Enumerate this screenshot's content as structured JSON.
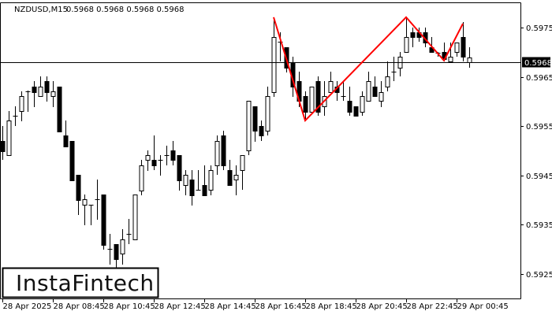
{
  "header": {
    "symbol": "NZDUSD,M15",
    "ohlc_text": "0.5968 0.5968 0.5968 0.5968"
  },
  "logo": {
    "text": "InstaFintech"
  },
  "colors": {
    "bull_fill": "#ffffff",
    "bear_fill": "#000000",
    "candle_stroke": "#000000",
    "pattern_line": "#ff0000",
    "price_tag_bg": "#000000",
    "price_tag_text": "#ffffff"
  },
  "chart_data": {
    "type": "candlestick",
    "title": "NZDUSD,M15",
    "timeframe_minutes": 15,
    "first_candle_time": "28 Apr 2025 06:45",
    "ylim": [
      0.592,
      0.598
    ],
    "grid": false,
    "y_ticks": [
      "0.5975",
      "0.5965",
      "0.5955",
      "0.5945",
      "0.5935",
      "0.5925"
    ],
    "x_ticks": [
      {
        "label": "28 Apr 2025",
        "candle": 0
      },
      {
        "label": "28 Apr 08:45",
        "candle": 8
      },
      {
        "label": "28 Apr 10:45",
        "candle": 16
      },
      {
        "label": "28 Apr 12:45",
        "candle": 24
      },
      {
        "label": "28 Apr 14:45",
        "candle": 32
      },
      {
        "label": "28 Apr 16:45",
        "candle": 40
      },
      {
        "label": "28 Apr 18:45",
        "candle": 48
      },
      {
        "label": "28 Apr 20:45",
        "candle": 56
      },
      {
        "label": "28 Apr 22:45",
        "candle": 64
      },
      {
        "label": "29 Apr 00:45",
        "candle": 72
      }
    ],
    "current_price": 0.5968,
    "current_price_label": "0.5968",
    "ohlc_fields": [
      "open",
      "high",
      "low",
      "close"
    ],
    "candles": [
      [
        0.5952,
        0.5955,
        0.59481,
        0.59499
      ],
      [
        0.59491,
        0.5958,
        0.59491,
        0.59561
      ],
      [
        0.59571,
        0.5959,
        0.5955,
        0.59571
      ],
      [
        0.5958,
        0.5962,
        0.5956,
        0.59611
      ],
      [
        0.5962,
        0.59622,
        0.59579,
        0.5962
      ],
      [
        0.5963,
        0.59641,
        0.59588,
        0.59619
      ],
      [
        0.59611,
        0.59651,
        0.59611,
        0.5963
      ],
      [
        0.59641,
        0.59651,
        0.596,
        0.59619
      ],
      [
        0.59611,
        0.59641,
        0.59588,
        0.5962
      ],
      [
        0.5963,
        0.5963,
        0.59539,
        0.59539
      ],
      [
        0.59531,
        0.59561,
        0.59508,
        0.59508
      ],
      [
        0.5952,
        0.5952,
        0.5944,
        0.5944
      ],
      [
        0.59451,
        0.59451,
        0.59369,
        0.594
      ],
      [
        0.5939,
        0.59411,
        0.59348,
        0.59401
      ],
      [
        0.5939,
        0.5939,
        0.59348,
        0.5939
      ],
      [
        0.59401,
        0.59441,
        0.5936,
        0.59401
      ],
      [
        0.59411,
        0.59411,
        0.59299,
        0.59308
      ],
      [
        0.593,
        0.59331,
        0.59268,
        0.593
      ],
      [
        0.5931,
        0.5931,
        0.59262,
        0.5928
      ],
      [
        0.59291,
        0.5934,
        0.59268,
        0.5932
      ],
      [
        0.59331,
        0.59361,
        0.5931,
        0.59331
      ],
      [
        0.5932,
        0.59411,
        0.5932,
        0.59411
      ],
      [
        0.59419,
        0.59481,
        0.59409,
        0.5947
      ],
      [
        0.59481,
        0.595,
        0.59459,
        0.59491
      ],
      [
        0.59481,
        0.59531,
        0.5946,
        0.5947
      ],
      [
        0.59481,
        0.59491,
        0.59449,
        0.59481
      ],
      [
        0.59491,
        0.5951,
        0.5947,
        0.59491
      ],
      [
        0.595,
        0.5952,
        0.5947,
        0.59481
      ],
      [
        0.59491,
        0.59491,
        0.59419,
        0.5944
      ],
      [
        0.5943,
        0.5946,
        0.59409,
        0.59451
      ],
      [
        0.59441,
        0.5946,
        0.59388,
        0.59409
      ],
      [
        0.5942,
        0.5946,
        0.5942,
        0.5942
      ],
      [
        0.5943,
        0.5947,
        0.59409,
        0.59409
      ],
      [
        0.5942,
        0.5947,
        0.59409,
        0.5946
      ],
      [
        0.5947,
        0.59531,
        0.59451,
        0.5952
      ],
      [
        0.59531,
        0.5954,
        0.5946,
        0.5947
      ],
      [
        0.5946,
        0.59481,
        0.5943,
        0.5943
      ],
      [
        0.59441,
        0.5947,
        0.59409,
        0.59451
      ],
      [
        0.5946,
        0.59491,
        0.5942,
        0.59491
      ],
      [
        0.595,
        0.59601,
        0.59491,
        0.59601
      ],
      [
        0.5959,
        0.5959,
        0.59518,
        0.5954
      ],
      [
        0.5955,
        0.59561,
        0.5952,
        0.59531
      ],
      [
        0.5954,
        0.5963,
        0.59531,
        0.59611
      ],
      [
        0.59619,
        0.59771,
        0.59609,
        0.59731
      ],
      [
        0.59721,
        0.5974,
        0.59681,
        0.59721
      ],
      [
        0.5971,
        0.5971,
        0.59659,
        0.59668
      ],
      [
        0.5968,
        0.59691,
        0.59609,
        0.5963
      ],
      [
        0.59641,
        0.5966,
        0.59588,
        0.59601
      ],
      [
        0.59611,
        0.5962,
        0.59561,
        0.59579
      ],
      [
        0.59579,
        0.5963,
        0.59579,
        0.5963
      ],
      [
        0.59641,
        0.59651,
        0.59571,
        0.59579
      ],
      [
        0.5959,
        0.59641,
        0.59571,
        0.59611
      ],
      [
        0.59619,
        0.5966,
        0.59619,
        0.59641
      ],
      [
        0.5963,
        0.59641,
        0.59601,
        0.59619
      ],
      [
        0.59611,
        0.59641,
        0.59601,
        0.59611
      ],
      [
        0.59601,
        0.5963,
        0.59571,
        0.59579
      ],
      [
        0.5959,
        0.5959,
        0.59571,
        0.59571
      ],
      [
        0.59579,
        0.5962,
        0.59571,
        0.59611
      ],
      [
        0.59601,
        0.5966,
        0.59601,
        0.59641
      ],
      [
        0.5963,
        0.59651,
        0.59611,
        0.59611
      ],
      [
        0.59601,
        0.59641,
        0.59588,
        0.59619
      ],
      [
        0.5963,
        0.59681,
        0.5962,
        0.59651
      ],
      [
        0.5966,
        0.59691,
        0.59641,
        0.5966
      ],
      [
        0.59668,
        0.597,
        0.59651,
        0.59691
      ],
      [
        0.597,
        0.59771,
        0.597,
        0.59731
      ],
      [
        0.5974,
        0.5975,
        0.5971,
        0.59731
      ],
      [
        0.5974,
        0.5975,
        0.59721,
        0.59731
      ],
      [
        0.5974,
        0.5975,
        0.5971,
        0.5972
      ],
      [
        0.5971,
        0.59731,
        0.597,
        0.597
      ],
      [
        0.59699,
        0.597,
        0.59691,
        0.59699
      ],
      [
        0.597,
        0.5972,
        0.59681,
        0.59686
      ],
      [
        0.59681,
        0.5972,
        0.59681,
        0.59691
      ],
      [
        0.597,
        0.5972,
        0.59691,
        0.5972
      ],
      [
        0.59731,
        0.59761,
        0.59681,
        0.59691
      ],
      [
        0.5968,
        0.5971,
        0.59668,
        0.5969
      ]
    ],
    "pattern_line": [
      {
        "candle": 43,
        "price": 0.59771
      },
      {
        "candle": 48,
        "price": 0.59561
      },
      {
        "candle": 64,
        "price": 0.59771
      },
      {
        "candle": 70,
        "price": 0.59683
      },
      {
        "candle": 73,
        "price": 0.59758
      }
    ]
  }
}
